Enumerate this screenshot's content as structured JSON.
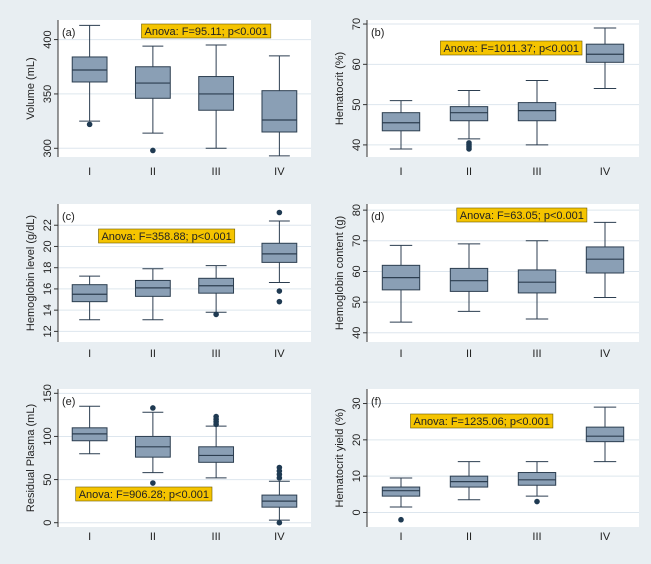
{
  "colors": {
    "background": "#e8eef2",
    "plot_bg": "#ffffff",
    "box_fill": "#8a9fb5",
    "box_stroke": "#2c3e50",
    "outlier": "#1f3a52",
    "grid": "#dde6ee",
    "annotation_bg": "#f5c400"
  },
  "chart_data": [
    {
      "panel": "(a)",
      "type": "box",
      "ylabel": "Volume (mL)",
      "categories": [
        "I",
        "II",
        "III",
        "IV"
      ],
      "yticks": [
        300,
        350,
        400
      ],
      "ylim": [
        292,
        418
      ],
      "annotation": "Anova: F=95.11; p<0.001",
      "annotation_position": "top-center",
      "boxes": [
        {
          "min": 325,
          "q1": 361,
          "median": 372,
          "q3": 384,
          "max": 413,
          "outliers": [
            322
          ]
        },
        {
          "min": 314,
          "q1": 346,
          "median": 360,
          "q3": 375,
          "max": 394,
          "outliers": [
            298
          ]
        },
        {
          "min": 300,
          "q1": 335,
          "median": 350,
          "q3": 366,
          "max": 395,
          "outliers": []
        },
        {
          "min": 293,
          "q1": 315,
          "median": 326,
          "q3": 353,
          "max": 385,
          "outliers": []
        }
      ]
    },
    {
      "panel": "(b)",
      "type": "box",
      "ylabel": "Hematocrit (%)",
      "categories": [
        "I",
        "II",
        "III",
        "IV"
      ],
      "yticks": [
        40,
        50,
        60,
        70
      ],
      "ylim": [
        37,
        71
      ],
      "annotation": "Anova: F=1011.37; p<0.001",
      "annotation_position": "top-right",
      "boxes": [
        {
          "min": 39,
          "q1": 43.5,
          "median": 45.5,
          "q3": 48,
          "max": 51,
          "outliers": []
        },
        {
          "min": 41.5,
          "q1": 46,
          "median": 48,
          "q3": 49.5,
          "max": 53.5,
          "outliers": [
            39,
            39.5,
            40,
            40.5
          ]
        },
        {
          "min": 40,
          "q1": 46,
          "median": 48.5,
          "q3": 50.5,
          "max": 56,
          "outliers": []
        },
        {
          "min": 54,
          "q1": 60.5,
          "median": 62.5,
          "q3": 65,
          "max": 69,
          "outliers": []
        }
      ]
    },
    {
      "panel": "(c)",
      "type": "box",
      "ylabel": "Hemoglobin level (g/dL)",
      "categories": [
        "I",
        "II",
        "III",
        "IV"
      ],
      "yticks": [
        12,
        14,
        16,
        18,
        20,
        22
      ],
      "ylim": [
        11,
        24
      ],
      "annotation": "Anova: F=358.88; p<0.001",
      "annotation_position": "top-left",
      "boxes": [
        {
          "min": 13.1,
          "q1": 14.8,
          "median": 15.5,
          "q3": 16.4,
          "max": 17.2,
          "outliers": []
        },
        {
          "min": 13.1,
          "q1": 15.3,
          "median": 16.1,
          "q3": 16.8,
          "max": 17.9,
          "outliers": []
        },
        {
          "min": 13.8,
          "q1": 15.6,
          "median": 16.3,
          "q3": 17,
          "max": 18.2,
          "outliers": [
            13.6
          ]
        },
        {
          "min": 16.6,
          "q1": 18.5,
          "median": 19.3,
          "q3": 20.3,
          "max": 22.4,
          "outliers": [
            15.8,
            14.8,
            23.2
          ]
        }
      ]
    },
    {
      "panel": "(d)",
      "type": "box",
      "ylabel": "Hemoglobin content (g)",
      "categories": [
        "I",
        "II",
        "III",
        "IV"
      ],
      "yticks": [
        40,
        50,
        60,
        70,
        80
      ],
      "ylim": [
        37,
        82
      ],
      "annotation": "Anova: F=63.05; p<0.001",
      "annotation_position": "top-center",
      "boxes": [
        {
          "min": 43.5,
          "q1": 54,
          "median": 58,
          "q3": 62,
          "max": 68.5,
          "outliers": []
        },
        {
          "min": 47,
          "q1": 53.5,
          "median": 57,
          "q3": 61,
          "max": 69,
          "outliers": []
        },
        {
          "min": 44.5,
          "q1": 53,
          "median": 56.5,
          "q3": 60.5,
          "max": 70,
          "outliers": []
        },
        {
          "min": 51.5,
          "q1": 59.5,
          "median": 64,
          "q3": 68,
          "max": 76,
          "outliers": []
        }
      ]
    },
    {
      "panel": "(e)",
      "type": "box",
      "ylabel": "Residual Plasma (mL)",
      "categories": [
        "I",
        "II",
        "III",
        "IV"
      ],
      "yticks": [
        0,
        50,
        100,
        150
      ],
      "ylim": [
        -5,
        155
      ],
      "annotation": "Anova: F=906.28; p<0.001",
      "annotation_position": "bottom-left",
      "boxes": [
        {
          "min": 80,
          "q1": 95,
          "median": 103,
          "q3": 110,
          "max": 135,
          "outliers": []
        },
        {
          "min": 58,
          "q1": 76,
          "median": 88,
          "q3": 100,
          "max": 128,
          "outliers": [
            46,
            133
          ]
        },
        {
          "min": 52,
          "q1": 70,
          "median": 78,
          "q3": 88,
          "max": 112,
          "outliers": [
            114,
            117,
            120,
            123
          ]
        },
        {
          "min": 3,
          "q1": 18,
          "median": 25,
          "q3": 32,
          "max": 48,
          "outliers": [
            52,
            56,
            60,
            64,
            0
          ]
        }
      ]
    },
    {
      "panel": "(f)",
      "type": "box",
      "ylabel": "Hematocrit yield (%)",
      "categories": [
        "I",
        "II",
        "III",
        "IV"
      ],
      "yticks": [
        0,
        10,
        20,
        30
      ],
      "ylim": [
        -4,
        34
      ],
      "annotation": "Anova: F=1235.06; p<0.001",
      "annotation_position": "top-left",
      "boxes": [
        {
          "min": 1.5,
          "q1": 4.5,
          "median": 6,
          "q3": 7,
          "max": 9.5,
          "outliers": [
            -2
          ]
        },
        {
          "min": 3.5,
          "q1": 7,
          "median": 8.5,
          "q3": 10,
          "max": 14,
          "outliers": []
        },
        {
          "min": 4.5,
          "q1": 7.5,
          "median": 9,
          "q3": 11,
          "max": 14,
          "outliers": [
            3
          ]
        },
        {
          "min": 14,
          "q1": 19.5,
          "median": 21,
          "q3": 23.5,
          "max": 29,
          "outliers": []
        }
      ]
    }
  ]
}
